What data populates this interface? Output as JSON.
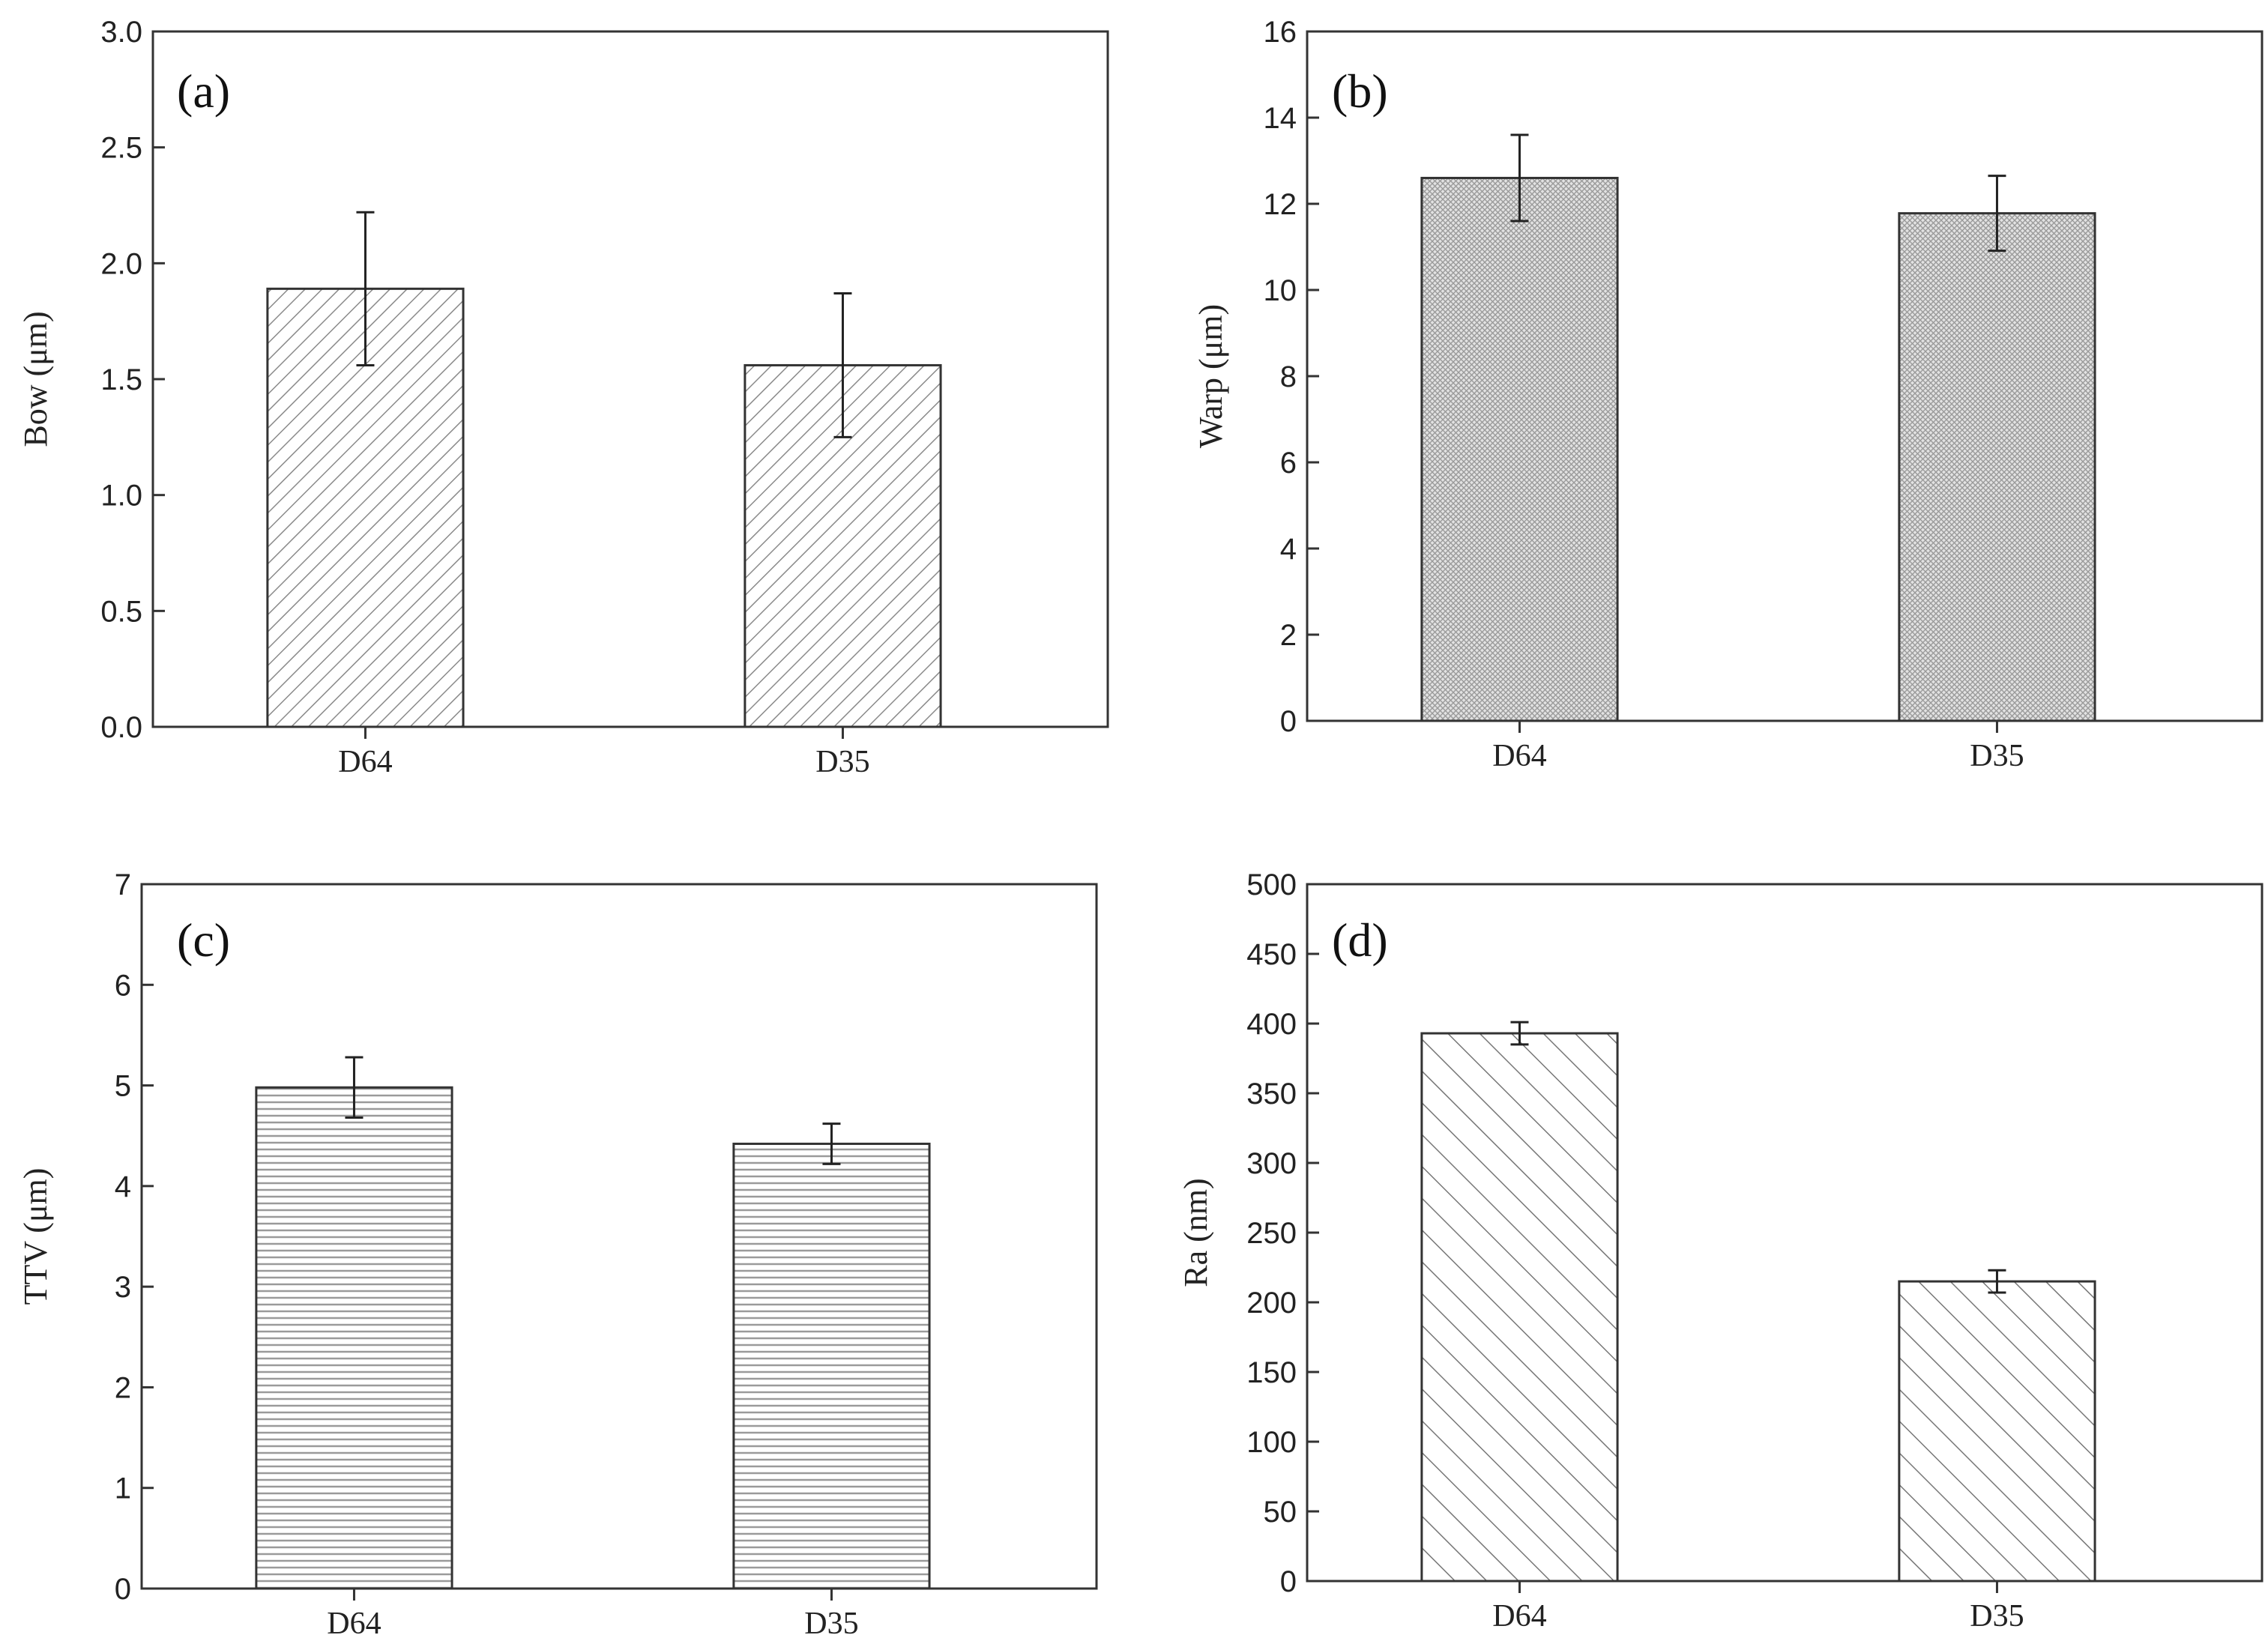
{
  "chart_data": [
    {
      "panel": "(a)",
      "type": "bar",
      "categories": [
        "D64",
        "D35"
      ],
      "values": [
        1.89,
        1.56
      ],
      "errors": [
        0.33,
        0.31
      ],
      "ylabel": "Bow (μm)",
      "xlabel": "",
      "ylim": [
        0,
        3.0
      ],
      "yticks": [
        "0.0",
        "0.5",
        "1.0",
        "1.5",
        "2.0",
        "2.5",
        "3.0"
      ],
      "pattern": "diagonal"
    },
    {
      "panel": "(b)",
      "type": "bar",
      "categories": [
        "D64",
        "D35"
      ],
      "values": [
        12.6,
        11.78
      ],
      "errors": [
        1.0,
        0.87
      ],
      "ylabel": "Warp (μm)",
      "xlabel": "",
      "ylim": [
        0,
        16
      ],
      "yticks": [
        "0",
        "2",
        "4",
        "6",
        "8",
        "10",
        "12",
        "14",
        "16"
      ],
      "pattern": "crosshatch"
    },
    {
      "panel": "(c)",
      "type": "bar",
      "categories": [
        "D64",
        "D35"
      ],
      "values": [
        4.98,
        4.42
      ],
      "errors": [
        0.3,
        0.2
      ],
      "ylabel": "TTV (μm)",
      "xlabel": "",
      "ylim": [
        0,
        7
      ],
      "yticks": [
        "0",
        "1",
        "2",
        "3",
        "4",
        "5",
        "6",
        "7"
      ],
      "pattern": "horizontal"
    },
    {
      "panel": "(d)",
      "type": "bar",
      "categories": [
        "D64",
        "D35"
      ],
      "values": [
        393,
        215
      ],
      "errors": [
        8,
        8
      ],
      "ylabel": "Ra (nm)",
      "xlabel": "",
      "ylim": [
        0,
        500
      ],
      "yticks": [
        "0",
        "50",
        "100",
        "150",
        "200",
        "250",
        "300",
        "350",
        "400",
        "450",
        "500"
      ],
      "pattern": "wide-diagonal"
    }
  ]
}
